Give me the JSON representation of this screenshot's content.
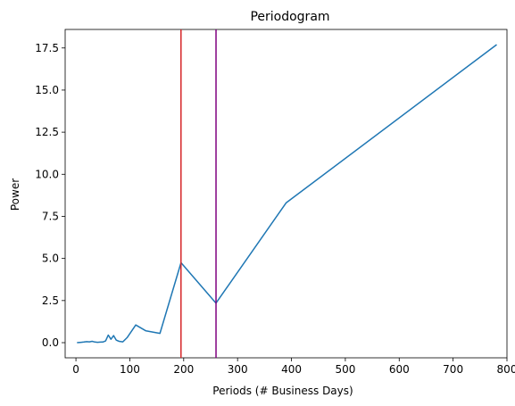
{
  "chart_data": {
    "type": "line",
    "title": "Periodogram",
    "xlabel": "Periods (# Business Days)",
    "ylabel": "Power",
    "xlim": [
      -20,
      800
    ],
    "ylim": [
      -0.9,
      18.6
    ],
    "xticks": [
      0,
      100,
      200,
      300,
      400,
      500,
      600,
      700,
      800
    ],
    "yticks": [
      0.0,
      2.5,
      5.0,
      7.5,
      10.0,
      12.5,
      15.0,
      17.5
    ],
    "xtick_labels": [
      "0",
      "100",
      "200",
      "300",
      "400",
      "500",
      "600",
      "700",
      "800"
    ],
    "ytick_labels": [
      "0.0",
      "2.5",
      "5.0",
      "7.5",
      "10.0",
      "12.5",
      "15.0",
      "17.5"
    ],
    "grid": false,
    "series": [
      {
        "color": "#1f77b4",
        "x": [
          2,
          10,
          15,
          20,
          25,
          30,
          35,
          40,
          45,
          50,
          55,
          60,
          65,
          70,
          75,
          80,
          87,
          95,
          111,
          130,
          156,
          195,
          260,
          390,
          781
        ],
        "y": [
          0.0,
          0.02,
          0.04,
          0.06,
          0.05,
          0.08,
          0.04,
          0.02,
          0.03,
          0.04,
          0.1,
          0.45,
          0.2,
          0.42,
          0.15,
          0.08,
          0.05,
          0.3,
          1.05,
          0.7,
          0.55,
          4.75,
          2.35,
          8.3,
          17.7
        ]
      }
    ],
    "vlines": [
      {
        "x": 195,
        "color": "#d62728"
      },
      {
        "x": 260,
        "color": "#800080"
      }
    ]
  }
}
